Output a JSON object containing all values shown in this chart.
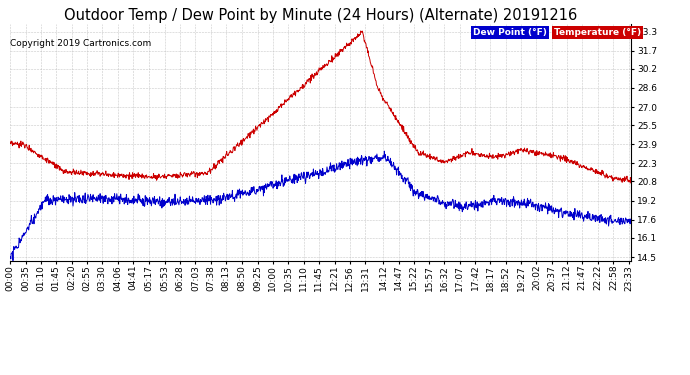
{
  "title": "Outdoor Temp / Dew Point by Minute (24 Hours) (Alternate) 20191216",
  "copyright": "Copyright 2019 Cartronics.com",
  "legend_labels": [
    "Dew Point (°F)",
    "Temperature (°F)"
  ],
  "legend_bg_colors": [
    "#0000cc",
    "#cc0000"
  ],
  "line_color_temp": "#cc0000",
  "line_color_dew": "#0000cc",
  "yticks": [
    14.5,
    16.1,
    17.6,
    19.2,
    20.8,
    22.3,
    23.9,
    25.5,
    27.0,
    28.6,
    30.2,
    31.7,
    33.3
  ],
  "ymin": 14.2,
  "ymax": 33.9,
  "background_color": "#ffffff",
  "grid_color": "#bbbbbb",
  "title_fontsize": 10.5,
  "copyright_fontsize": 6.5,
  "tick_fontsize": 6.5,
  "xtick_labels": [
    "00:00",
    "00:35",
    "01:10",
    "01:45",
    "02:20",
    "02:55",
    "03:30",
    "04:06",
    "04:41",
    "05:17",
    "05:53",
    "06:28",
    "07:03",
    "07:38",
    "08:13",
    "08:50",
    "09:25",
    "10:00",
    "10:35",
    "11:10",
    "11:45",
    "12:21",
    "12:56",
    "13:31",
    "14:12",
    "14:47",
    "15:22",
    "15:57",
    "16:32",
    "17:07",
    "17:42",
    "18:17",
    "18:52",
    "19:27",
    "20:02",
    "20:37",
    "21:12",
    "21:47",
    "22:22",
    "22:58",
    "23:33"
  ]
}
